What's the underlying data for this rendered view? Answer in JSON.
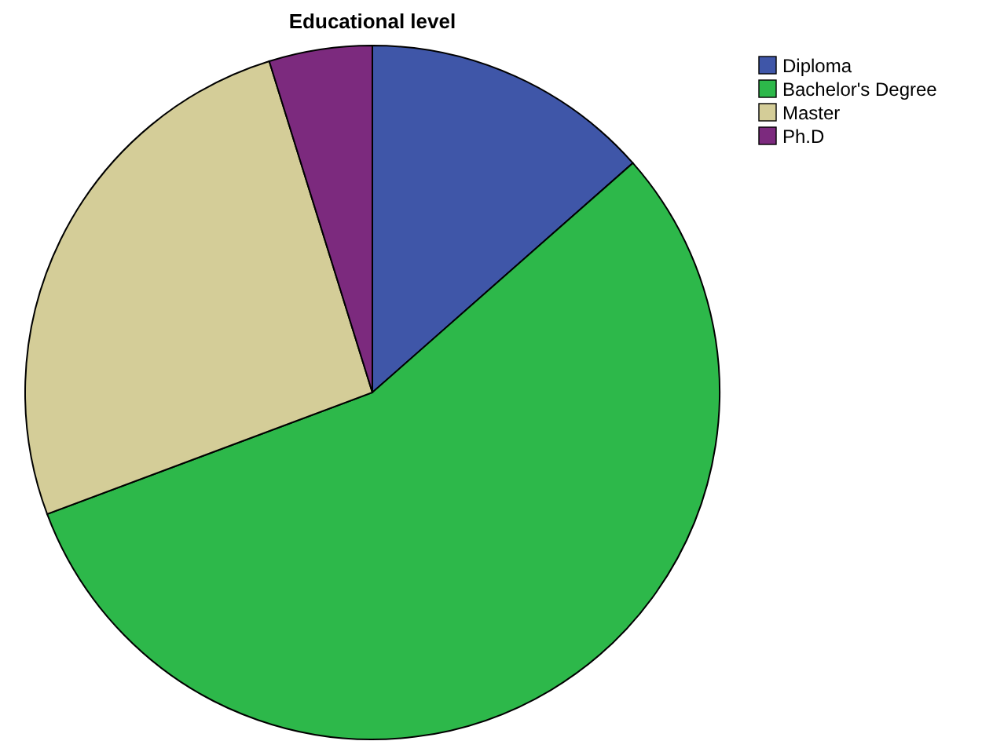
{
  "chart_data": {
    "type": "pie",
    "title": "Educational level",
    "categories": [
      "Diploma",
      "Bachelor's Degree",
      "Master",
      "Ph.D"
    ],
    "values": [
      13.5,
      55.8,
      25.9,
      4.8
    ],
    "colors": [
      "#3f56a8",
      "#2db84a",
      "#d4cd98",
      "#7c2a7e"
    ],
    "legend": "top right"
  }
}
